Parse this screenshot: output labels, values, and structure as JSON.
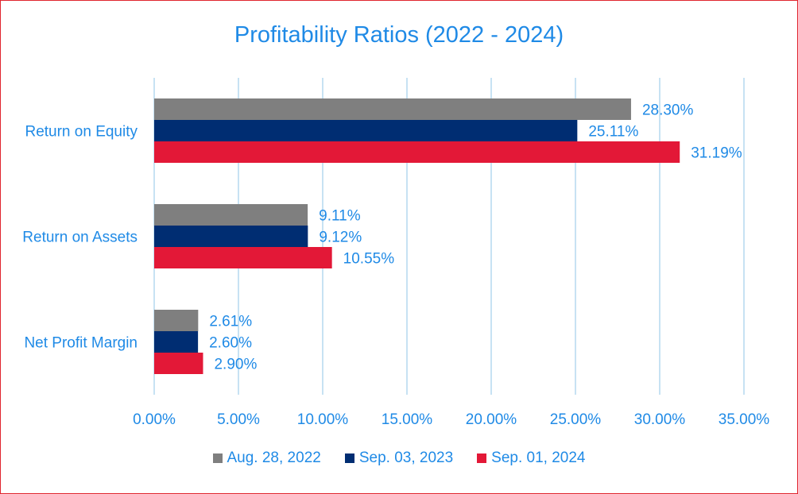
{
  "chart_data": {
    "type": "bar",
    "orientation": "horizontal",
    "title": "Profitability Ratios (2022 - 2024)",
    "categories": [
      "Return on Equity",
      "Return on Assets",
      "Net Profit Margin"
    ],
    "series": [
      {
        "name": "Aug. 28, 2022",
        "color": "#7f7f7f",
        "values": [
          28.3,
          9.11,
          2.61
        ],
        "labels": [
          "28.30%",
          "9.11%",
          "2.61%"
        ]
      },
      {
        "name": "Sep. 03, 2023",
        "color": "#002d72",
        "values": [
          25.11,
          9.12,
          2.6
        ],
        "labels": [
          "25.11%",
          "9.12%",
          "2.60%"
        ]
      },
      {
        "name": "Sep. 01, 2024",
        "color": "#e31837",
        "values": [
          31.19,
          10.55,
          2.9
        ],
        "labels": [
          "31.19%",
          "10.55%",
          "2.90%"
        ]
      }
    ],
    "xlim": [
      0,
      35
    ],
    "ticks": [
      "0.00%",
      "5.00%",
      "10.00%",
      "15.00%",
      "20.00%",
      "25.00%",
      "30.00%",
      "35.00%"
    ],
    "grid": true,
    "legend": "bottom",
    "label_color": "#1f8ae6",
    "grid_color": "#c7e2f3"
  }
}
